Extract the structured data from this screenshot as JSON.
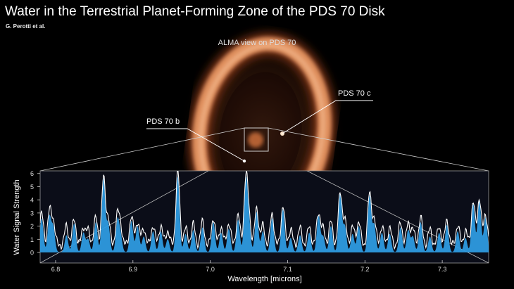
{
  "header": {
    "title": "Water in the Terrestrial Planet-Forming Zone of the PDS 70 Disk",
    "credit": "G. Perotti et al."
  },
  "image": {
    "caption": "ALMA view on PDS 70",
    "planet_b_label": "PDS 70 b",
    "planet_c_label": "PDS 70 c"
  },
  "colors": {
    "background": "#000000",
    "plot_bg": "#0b0d18",
    "water_fill": "#2e9be0",
    "spectrum_line": "#ffffff",
    "disk_glow": "#f08a4a"
  },
  "chart_data": {
    "type": "line",
    "title": "",
    "xlabel": "Wavelength [microns]",
    "ylabel": "Water Signal Strength",
    "xlim": [
      6.78,
      7.36
    ],
    "ylim": [
      -0.8,
      6.2
    ],
    "xticks": [
      6.8,
      6.9,
      7.0,
      7.1,
      7.2,
      7.3
    ],
    "yticks": [
      0,
      1,
      2,
      3,
      4,
      5,
      6
    ],
    "grid": false,
    "series": [
      {
        "name": "",
        "style": "filled",
        "peaks": [
          {
            "x": 6.782,
            "y": 2.6
          },
          {
            "x": 6.792,
            "y": 2.7
          },
          {
            "x": 6.797,
            "y": 1.9
          },
          {
            "x": 6.814,
            "y": 1.3
          },
          {
            "x": 6.824,
            "y": 2.2
          },
          {
            "x": 6.836,
            "y": 1.5
          },
          {
            "x": 6.842,
            "y": 1.0
          },
          {
            "x": 6.852,
            "y": 2.3
          },
          {
            "x": 6.862,
            "y": 5.6
          },
          {
            "x": 6.868,
            "y": 2.2
          },
          {
            "x": 6.88,
            "y": 2.4
          },
          {
            "x": 6.884,
            "y": 1.2
          },
          {
            "x": 6.898,
            "y": 2.4
          },
          {
            "x": 6.906,
            "y": 2.0
          },
          {
            "x": 6.914,
            "y": 1.2
          },
          {
            "x": 6.926,
            "y": 1.6
          },
          {
            "x": 6.936,
            "y": 1.6
          },
          {
            "x": 6.945,
            "y": 1.0
          },
          {
            "x": 6.958,
            "y": 5.8
          },
          {
            "x": 6.968,
            "y": 1.4
          },
          {
            "x": 6.978,
            "y": 1.7
          },
          {
            "x": 6.99,
            "y": 1.9
          },
          {
            "x": 7.004,
            "y": 2.3
          },
          {
            "x": 7.014,
            "y": 1.5
          },
          {
            "x": 7.024,
            "y": 1.8
          },
          {
            "x": 7.036,
            "y": 2.5
          },
          {
            "x": 7.046,
            "y": 5.3
          },
          {
            "x": 7.05,
            "y": 2.2
          },
          {
            "x": 7.06,
            "y": 3.1
          },
          {
            "x": 7.068,
            "y": 1.6
          },
          {
            "x": 7.08,
            "y": 2.6
          },
          {
            "x": 7.094,
            "y": 3.3
          },
          {
            "x": 7.104,
            "y": 1.1
          },
          {
            "x": 7.116,
            "y": 1.3
          },
          {
            "x": 7.128,
            "y": 1.5
          },
          {
            "x": 7.14,
            "y": 2.8
          },
          {
            "x": 7.146,
            "y": 1.2
          },
          {
            "x": 7.156,
            "y": 2.0
          },
          {
            "x": 7.168,
            "y": 4.5
          },
          {
            "x": 7.174,
            "y": 2.0
          },
          {
            "x": 7.184,
            "y": 1.4
          },
          {
            "x": 7.192,
            "y": 2.0
          },
          {
            "x": 7.206,
            "y": 4.3
          },
          {
            "x": 7.212,
            "y": 2.1
          },
          {
            "x": 7.222,
            "y": 1.5
          },
          {
            "x": 7.232,
            "y": 1.4
          },
          {
            "x": 7.246,
            "y": 1.9
          },
          {
            "x": 7.256,
            "y": 1.7
          },
          {
            "x": 7.262,
            "y": 1.2
          },
          {
            "x": 7.272,
            "y": 2.3
          },
          {
            "x": 7.284,
            "y": 1.2
          },
          {
            "x": 7.296,
            "y": 1.5
          },
          {
            "x": 7.306,
            "y": 2.1
          },
          {
            "x": 7.32,
            "y": 1.6
          },
          {
            "x": 7.33,
            "y": 1.1
          },
          {
            "x": 7.34,
            "y": 3.7
          },
          {
            "x": 7.348,
            "y": 4.0
          },
          {
            "x": 7.356,
            "y": 2.7
          }
        ]
      },
      {
        "name": "",
        "style": "line",
        "peaks": [
          {
            "x": 6.782,
            "y": 2.4
          },
          {
            "x": 6.792,
            "y": 2.5
          },
          {
            "x": 6.797,
            "y": 1.8
          },
          {
            "x": 6.814,
            "y": 1.5
          },
          {
            "x": 6.824,
            "y": 2.0
          },
          {
            "x": 6.836,
            "y": 1.4
          },
          {
            "x": 6.842,
            "y": 1.1
          },
          {
            "x": 6.852,
            "y": 2.1
          },
          {
            "x": 6.862,
            "y": 5.1
          },
          {
            "x": 6.868,
            "y": 2.0
          },
          {
            "x": 6.88,
            "y": 2.2
          },
          {
            "x": 6.884,
            "y": 1.3
          },
          {
            "x": 6.898,
            "y": 2.2
          },
          {
            "x": 6.906,
            "y": 1.8
          },
          {
            "x": 6.914,
            "y": 1.3
          },
          {
            "x": 6.926,
            "y": 1.5
          },
          {
            "x": 6.936,
            "y": 1.5
          },
          {
            "x": 6.945,
            "y": 1.1
          },
          {
            "x": 6.958,
            "y": 5.6
          },
          {
            "x": 6.968,
            "y": 1.3
          },
          {
            "x": 6.978,
            "y": 1.6
          },
          {
            "x": 6.99,
            "y": 1.8
          },
          {
            "x": 7.004,
            "y": 2.1
          },
          {
            "x": 7.014,
            "y": 1.4
          },
          {
            "x": 7.024,
            "y": 1.7
          },
          {
            "x": 7.036,
            "y": 2.3
          },
          {
            "x": 7.046,
            "y": 4.9
          },
          {
            "x": 7.05,
            "y": 2.0
          },
          {
            "x": 7.06,
            "y": 2.8
          },
          {
            "x": 7.068,
            "y": 1.5
          },
          {
            "x": 7.08,
            "y": 2.4
          },
          {
            "x": 7.094,
            "y": 3.0
          },
          {
            "x": 7.104,
            "y": 1.2
          },
          {
            "x": 7.116,
            "y": 1.3
          },
          {
            "x": 7.128,
            "y": 1.4
          },
          {
            "x": 7.14,
            "y": 2.5
          },
          {
            "x": 7.146,
            "y": 1.2
          },
          {
            "x": 7.156,
            "y": 1.8
          },
          {
            "x": 7.168,
            "y": 4.0
          },
          {
            "x": 7.174,
            "y": 1.8
          },
          {
            "x": 7.184,
            "y": 1.4
          },
          {
            "x": 7.192,
            "y": 1.8
          },
          {
            "x": 7.206,
            "y": 3.9
          },
          {
            "x": 7.212,
            "y": 1.9
          },
          {
            "x": 7.222,
            "y": 1.4
          },
          {
            "x": 7.232,
            "y": 1.3
          },
          {
            "x": 7.246,
            "y": 1.7
          },
          {
            "x": 7.256,
            "y": 1.6
          },
          {
            "x": 7.262,
            "y": 1.2
          },
          {
            "x": 7.272,
            "y": 2.1
          },
          {
            "x": 7.284,
            "y": 1.2
          },
          {
            "x": 7.296,
            "y": 1.4
          },
          {
            "x": 7.306,
            "y": 1.9
          },
          {
            "x": 7.32,
            "y": 1.5
          },
          {
            "x": 7.33,
            "y": 1.1
          },
          {
            "x": 7.34,
            "y": 3.3
          },
          {
            "x": 7.348,
            "y": 3.6
          },
          {
            "x": 7.356,
            "y": 2.4
          }
        ]
      }
    ]
  }
}
